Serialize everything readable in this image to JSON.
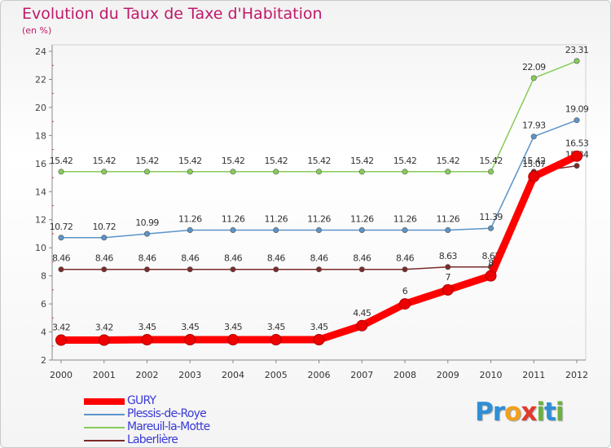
{
  "title": "Evolution du Taux de Taxe d'Habitation",
  "unit": "(en %)",
  "logo": {
    "text": "Proxiti",
    "letters": [
      {
        "ch": "P",
        "color": "#2f8fd6"
      },
      {
        "ch": "r",
        "color": "#2f8fd6"
      },
      {
        "ch": "o",
        "color": "#f2a01e"
      },
      {
        "ch": "x",
        "color": "#e23a2c"
      },
      {
        "ch": "i",
        "color": "#6ab23e"
      },
      {
        "ch": "t",
        "color": "#2f8fd6"
      },
      {
        "ch": "i",
        "color": "#6ab23e"
      }
    ]
  },
  "chart_data": {
    "type": "line",
    "categories": [
      "2000",
      "2001",
      "2002",
      "2003",
      "2004",
      "2005",
      "2006",
      "2007",
      "2008",
      "2009",
      "2010",
      "2011",
      "2012"
    ],
    "ylim": [
      2,
      24
    ],
    "yticks": [
      2,
      4,
      6,
      8,
      10,
      12,
      14,
      16,
      18,
      20,
      22,
      24
    ],
    "grid": false,
    "legend_position": "bottom-left",
    "series": [
      {
        "name": "GURY",
        "color": "#ff0000",
        "emphasis": true,
        "values": [
          3.42,
          3.42,
          3.45,
          3.45,
          3.45,
          3.45,
          3.45,
          4.45,
          6,
          7,
          8,
          15.07,
          16.53
        ],
        "labels": [
          "3.42",
          "3.42",
          "3.45",
          "3.45",
          "3.45",
          "3.45",
          "3.45",
          "4.45",
          "6",
          "7",
          "8",
          "15.07",
          "16.53"
        ]
      },
      {
        "name": "Plessis-de-Roye",
        "color": "#5b94c8",
        "values": [
          10.72,
          10.72,
          10.99,
          11.26,
          11.26,
          11.26,
          11.26,
          11.26,
          11.26,
          11.26,
          11.39,
          17.93,
          19.09
        ],
        "labels": [
          "10.72",
          "10.72",
          "10.99",
          "11.26",
          "11.26",
          "11.26",
          "11.26",
          "11.26",
          "11.26",
          "11.26",
          "11.39",
          "17.93",
          "19.09"
        ]
      },
      {
        "name": "Mareuil-la-Motte",
        "color": "#86cc5a",
        "values": [
          15.42,
          15.42,
          15.42,
          15.42,
          15.42,
          15.42,
          15.42,
          15.42,
          15.42,
          15.42,
          15.42,
          22.09,
          23.31
        ],
        "labels": [
          "15.42",
          "15.42",
          "15.42",
          "15.42",
          "15.42",
          "15.42",
          "15.42",
          "15.42",
          "15.42",
          "15.42",
          "15.42",
          "22.09",
          "23.31"
        ]
      },
      {
        "name": "Laberlière",
        "color": "#7b2a2a",
        "values": [
          8.46,
          8.46,
          8.46,
          8.46,
          8.46,
          8.46,
          8.46,
          8.46,
          8.46,
          8.63,
          8.63,
          15.42,
          15.84
        ],
        "labels": [
          "8.46",
          "8.46",
          "8.46",
          "8.46",
          "8.46",
          "8.46",
          "8.46",
          "8.46",
          "8.46",
          "8.63",
          "8.63",
          "15.42",
          "15.84"
        ]
      }
    ]
  }
}
